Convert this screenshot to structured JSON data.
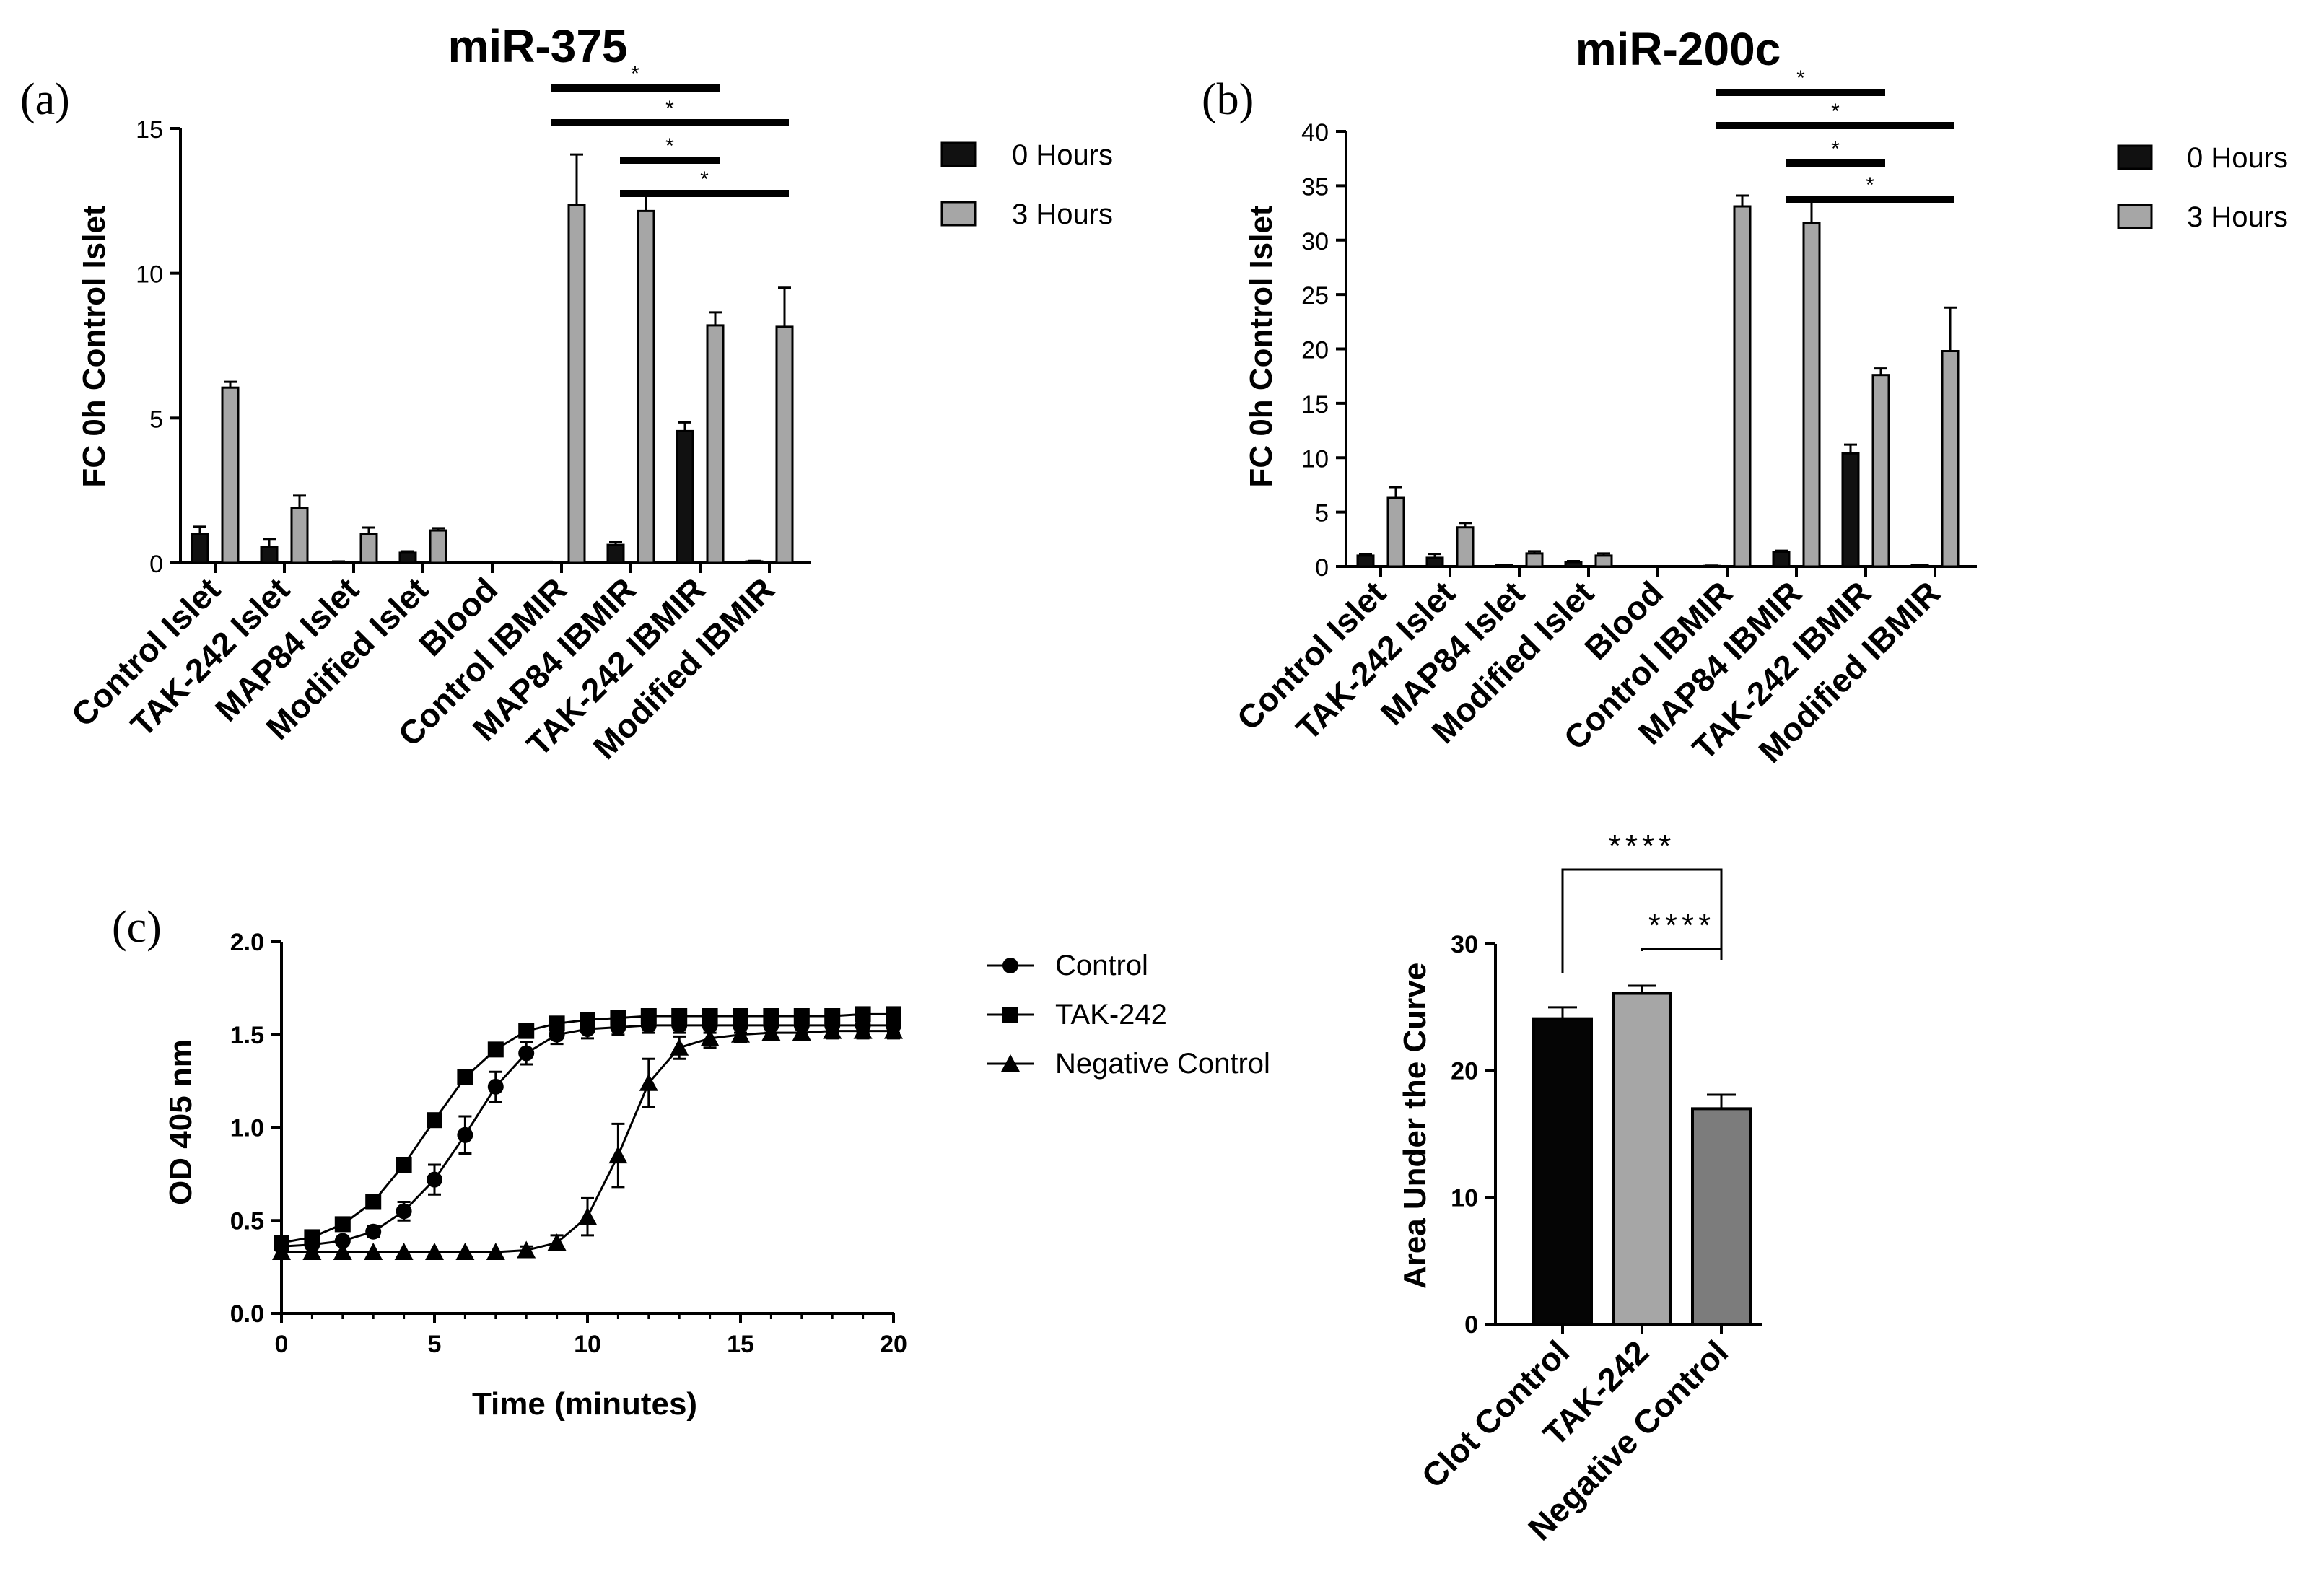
{
  "colors": {
    "h0": "#111111",
    "h3": "#a6a6a6",
    "auc": [
      "#050505",
      "#a6a6a6",
      "#7c7c7c"
    ]
  },
  "chart_data": [
    {
      "panel": "(a)",
      "type": "bar",
      "title": "miR-375",
      "ylabel": "FC 0h Control Islet",
      "ylim": [
        0,
        15
      ],
      "yticks": [
        "0",
        "5",
        "10",
        "15"
      ],
      "categories": [
        "Control Islet",
        "TAK-242 Islet",
        "MAP84 Islet",
        "Modified Islet",
        "Blood",
        "Control IBMIR",
        "MAP84 IBMIR",
        "TAK-242 IBMIR",
        "Modified IBMIR"
      ],
      "series": [
        {
          "name": "0 Hours",
          "values": [
            1.0,
            0.55,
            0.03,
            0.35,
            0.0,
            0.02,
            0.62,
            4.55,
            0.05
          ],
          "errors": [
            0.25,
            0.28,
            0.02,
            0.05,
            0.0,
            0.02,
            0.1,
            0.3,
            0.02
          ]
        },
        {
          "name": "3 Hours",
          "values": [
            6.05,
            1.9,
            1.0,
            1.12,
            0.0,
            12.35,
            12.15,
            8.2,
            8.15
          ],
          "errors": [
            0.2,
            0.42,
            0.22,
            0.08,
            0.0,
            1.75,
            0.55,
            0.45,
            1.35
          ]
        }
      ],
      "significance": [
        {
          "label": "*",
          "from": "Control IBMIR",
          "to": "TAK-242 IBMIR"
        },
        {
          "label": "*",
          "from": "Control IBMIR",
          "to": "Modified IBMIR"
        },
        {
          "label": "*",
          "from": "MAP84 IBMIR",
          "to": "TAK-242 IBMIR"
        },
        {
          "label": "*",
          "from": "MAP84 IBMIR",
          "to": "Modified IBMIR"
        }
      ]
    },
    {
      "panel": "(b)",
      "type": "bar",
      "title": "miR-200c",
      "ylabel": "FC 0h Control Islet",
      "ylim": [
        0,
        40
      ],
      "yticks": [
        "0",
        "5",
        "10",
        "15",
        "20",
        "25",
        "30",
        "35",
        "40"
      ],
      "categories": [
        "Control Islet",
        "TAK-242 Islet",
        "MAP84 Islet",
        "Modified Islet",
        "Blood",
        "Control IBMIR",
        "MAP84 IBMIR",
        "TAK-242 IBMIR",
        "Modified IBMIR"
      ],
      "series": [
        {
          "name": "0 Hours",
          "values": [
            1.0,
            0.8,
            0.1,
            0.4,
            0.0,
            0.05,
            1.3,
            10.4,
            0.1
          ],
          "errors": [
            0.15,
            0.35,
            0.05,
            0.1,
            0.0,
            0.03,
            0.15,
            0.8,
            0.05
          ]
        },
        {
          "name": "3 Hours",
          "values": [
            6.3,
            3.6,
            1.2,
            1.0,
            0.0,
            33.1,
            31.6,
            17.6,
            19.8
          ],
          "errors": [
            1.0,
            0.4,
            0.2,
            0.2,
            0.0,
            1.0,
            2.4,
            0.6,
            4.0
          ]
        }
      ],
      "significance": [
        {
          "label": "*",
          "from": "Control IBMIR",
          "to": "TAK-242 IBMIR"
        },
        {
          "label": "*",
          "from": "Control IBMIR",
          "to": "Modified IBMIR"
        },
        {
          "label": "*",
          "from": "MAP84 IBMIR",
          "to": "TAK-242 IBMIR"
        },
        {
          "label": "*",
          "from": "MAP84 IBMIR",
          "to": "Modified IBMIR"
        }
      ]
    },
    {
      "panel": "(c)",
      "type": "line",
      "xlabel": "Time (minutes)",
      "ylabel": "OD 405 nm",
      "xlim": [
        0,
        20
      ],
      "ylim": [
        0,
        2.0
      ],
      "xticks": [
        "0",
        "5",
        "10",
        "15",
        "20"
      ],
      "yticks": [
        "0.0",
        "0.5",
        "1.0",
        "1.5",
        "2.0"
      ],
      "x": [
        0,
        1,
        2,
        3,
        4,
        5,
        6,
        7,
        8,
        9,
        10,
        11,
        12,
        13,
        14,
        15,
        16,
        17,
        18,
        19,
        20
      ],
      "series": [
        {
          "name": "Control",
          "marker": "circle",
          "values": [
            0.36,
            0.37,
            0.39,
            0.44,
            0.55,
            0.72,
            0.96,
            1.22,
            1.4,
            1.5,
            1.53,
            1.54,
            1.55,
            1.55,
            1.55,
            1.55,
            1.55,
            1.55,
            1.55,
            1.55,
            1.55
          ],
          "errors": [
            0.02,
            0.02,
            0.02,
            0.03,
            0.05,
            0.08,
            0.1,
            0.08,
            0.06,
            0.05,
            0.05,
            0.04,
            0.04,
            0.04,
            0.04,
            0.04,
            0.04,
            0.04,
            0.04,
            0.04,
            0.04
          ]
        },
        {
          "name": "TAK-242",
          "marker": "square",
          "values": [
            0.38,
            0.41,
            0.48,
            0.6,
            0.8,
            1.04,
            1.27,
            1.42,
            1.52,
            1.56,
            1.58,
            1.59,
            1.6,
            1.6,
            1.6,
            1.6,
            1.6,
            1.6,
            1.6,
            1.61,
            1.61
          ],
          "errors": [
            0.02,
            0.02,
            0.02,
            0.02,
            0.03,
            0.03,
            0.03,
            0.03,
            0.03,
            0.03,
            0.03,
            0.03,
            0.03,
            0.03,
            0.03,
            0.03,
            0.03,
            0.03,
            0.03,
            0.03,
            0.03
          ]
        },
        {
          "name": "Negative Control",
          "marker": "triangle",
          "values": [
            0.33,
            0.33,
            0.33,
            0.33,
            0.33,
            0.33,
            0.33,
            0.33,
            0.34,
            0.38,
            0.52,
            0.85,
            1.24,
            1.43,
            1.48,
            1.5,
            1.51,
            1.51,
            1.52,
            1.52,
            1.52
          ],
          "errors": [
            0.01,
            0.01,
            0.01,
            0.01,
            0.01,
            0.01,
            0.01,
            0.01,
            0.02,
            0.04,
            0.1,
            0.17,
            0.13,
            0.06,
            0.05,
            0.04,
            0.04,
            0.04,
            0.04,
            0.04,
            0.04
          ]
        }
      ]
    },
    {
      "type": "bar",
      "ylabel": "Area Under the Curve",
      "ylim": [
        0,
        30
      ],
      "yticks": [
        "0",
        "10",
        "20",
        "30"
      ],
      "categories": [
        "Clot Control",
        "TAK-242",
        "Negative Control"
      ],
      "values": [
        24.1,
        26.1,
        17.0
      ],
      "errors": [
        0.9,
        0.6,
        1.1
      ],
      "significance": [
        {
          "label": "****",
          "from": "Clot Control",
          "to": "Negative Control"
        },
        {
          "label": "****",
          "from": "TAK-242",
          "to": "Negative Control"
        }
      ]
    }
  ]
}
